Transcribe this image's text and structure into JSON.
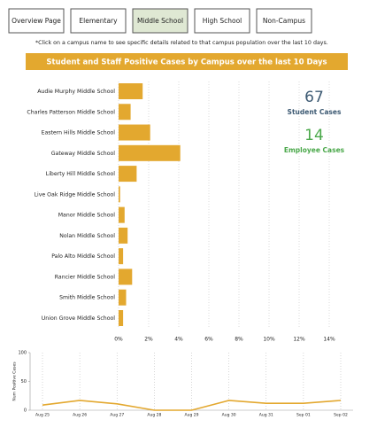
{
  "nav": [
    "Overview Page",
    "Elementary",
    "Middle School",
    "High School",
    "Non-Campus"
  ],
  "note": "*Click on a campus name to see specific details related to that campus population over the last 10 days.",
  "kpis": [
    {
      "value": 67,
      "label": "Student Cases",
      "color": "#3d5a73"
    },
    {
      "value": 14,
      "label": "Employee Cases",
      "color": "#4aa84a"
    }
  ],
  "chart_data": [
    {
      "type": "bar",
      "orientation": "horizontal",
      "title": "Student and Staff Positive Cases by Campus over the last 10 Days",
      "categories": [
        "Audie Murphy Middle School",
        "Charles Patterson Middle School",
        "Eastern Hills Middle School",
        "Gateway Middle School",
        "Liberty Hill Middle School",
        "Live Oak Ridge Middle School",
        "Manor Middle School",
        "Nolan Middle School",
        "Palo Alto Middle School",
        "Rancier Middle School",
        "Smith Middle School",
        "Union Grove Middle School"
      ],
      "values": [
        1.6,
        0.8,
        2.1,
        4.1,
        1.2,
        0.1,
        0.4,
        0.6,
        0.3,
        0.9,
        0.5,
        0.3
      ],
      "color": "#e3a82f",
      "xlim": [
        0,
        15
      ],
      "xticks": [
        {
          "value": 0,
          "label": "0%"
        },
        {
          "value": 2,
          "label": "2%"
        },
        {
          "value": 4,
          "label": "4%"
        },
        {
          "value": 6,
          "label": "6%"
        },
        {
          "value": 8,
          "label": "8%"
        },
        {
          "value": 10,
          "label": "10%"
        },
        {
          "value": 12,
          "label": "12%"
        },
        {
          "value": 14,
          "label": "14%"
        }
      ],
      "grid": true
    },
    {
      "type": "line",
      "ylabel": "Num Positive Cases",
      "categories": [
        "Aug 25",
        "Aug 26",
        "Aug 27",
        "Aug 28",
        "Aug 29",
        "Aug 30",
        "Aug 31",
        "Sep 01",
        "Sep 02"
      ],
      "values": [
        9,
        17,
        11,
        0,
        0,
        17,
        12,
        12,
        17
      ],
      "color": "#e3a82f",
      "ylim": [
        0,
        100
      ],
      "yticks": [
        0,
        50,
        100
      ],
      "grid": true
    }
  ]
}
